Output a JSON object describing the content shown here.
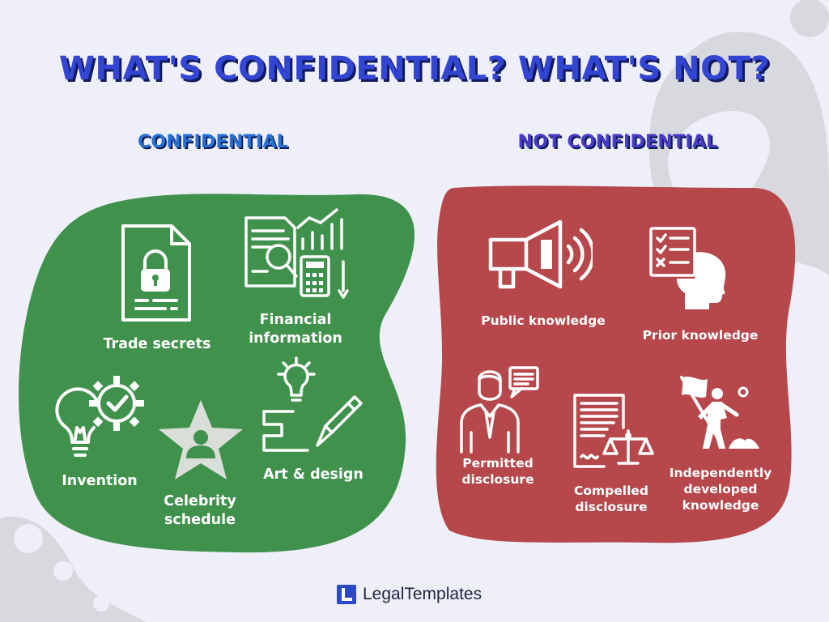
{
  "title": "WHAT'S CONFIDENTIAL? WHAT'S NOT?",
  "colors": {
    "background": "#eeeff8",
    "title": "#3346d3",
    "title_shadow": "#101a5c",
    "confidential_heading": "#2770d6",
    "not_confidential_heading": "#4a3ac8",
    "confidential_panel": "#3f914c",
    "not_confidential_panel": "#b6474b",
    "decoration": "#d8d9df"
  },
  "confidential": {
    "heading": "CONFIDENTIAL",
    "items": [
      {
        "line1": "Trade secrets",
        "line2": "",
        "icon": "locked-document-icon"
      },
      {
        "line1": "Financial",
        "line2": "information",
        "icon": "financial-documents-icon"
      },
      {
        "line1": "Invention",
        "line2": "",
        "icon": "lightbulb-gear-icon"
      },
      {
        "line1": "Celebrity",
        "line2": "schedule",
        "icon": "star-person-icon"
      },
      {
        "line1": "Art & design",
        "line2": "",
        "icon": "lightbulb-pencil-icon"
      }
    ]
  },
  "not_confidential": {
    "heading": "NOT CONFIDENTIAL",
    "items": [
      {
        "line1": "Public knowledge",
        "line2": "",
        "line3": "",
        "icon": "megaphone-icon"
      },
      {
        "line1": "Prior knowledge",
        "line2": "",
        "line3": "",
        "icon": "checklist-head-icon"
      },
      {
        "line1": "Permitted",
        "line2": "disclosure",
        "line3": "",
        "icon": "businessman-speech-icon"
      },
      {
        "line1": "Compelled",
        "line2": "disclosure",
        "line3": "",
        "icon": "document-scales-icon"
      },
      {
        "line1": "Independently",
        "line2": "developed",
        "line3": "knowledge",
        "icon": "person-flag-icon"
      }
    ]
  },
  "brand": {
    "name": "LegalTemplates",
    "icon": "legaltemplates-logo-icon"
  }
}
